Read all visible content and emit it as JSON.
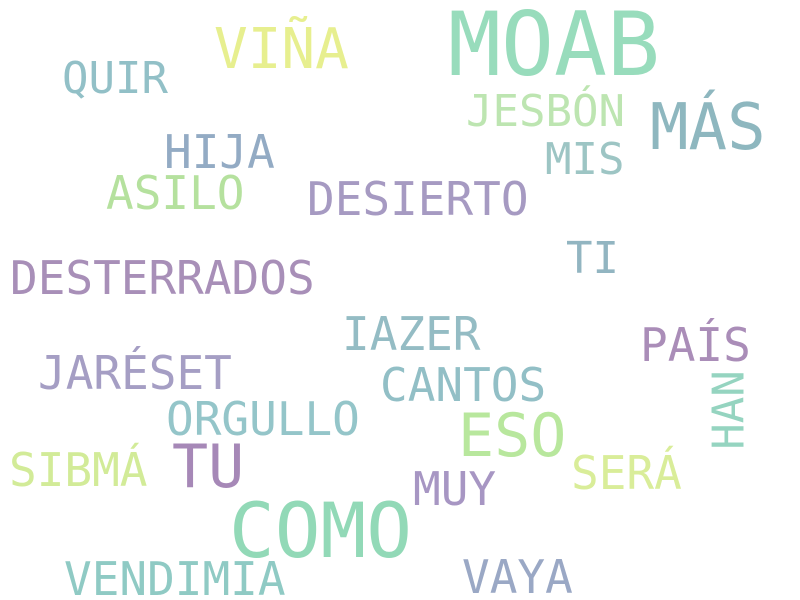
{
  "words": [
    {
      "text": "MOAB",
      "color": "#98dcbc"
    },
    {
      "text": "VIÑA",
      "color": "#e7ef8f"
    },
    {
      "text": "QUIR",
      "color": "#92c0c7"
    },
    {
      "text": "JESBÓN",
      "color": "#bde5b1"
    },
    {
      "text": "MÁS",
      "color": "#8eb7bf"
    },
    {
      "text": "HIJA",
      "color": "#93abc4"
    },
    {
      "text": "MIS",
      "color": "#9dc5c4"
    },
    {
      "text": "ASILO",
      "color": "#b5e19e"
    },
    {
      "text": "DESIERTO",
      "color": "#a69ac2"
    },
    {
      "text": "TI",
      "color": "#92b5c1"
    },
    {
      "text": "DESTERRADOS",
      "color": "#a88fb8"
    },
    {
      "text": "IAZER",
      "color": "#94bcc4"
    },
    {
      "text": "PAÍS",
      "color": "#aa8db8"
    },
    {
      "text": "JARÉSET",
      "color": "#a59ec4"
    },
    {
      "text": "CANTOS",
      "color": "#92bfc6"
    },
    {
      "text": "HAN",
      "color": "#95d4c0"
    },
    {
      "text": "ORGULLO",
      "color": "#94c5c9"
    },
    {
      "text": "ESO",
      "color": "#b8e79d"
    },
    {
      "text": "SIBMÁ",
      "color": "#d2eb98"
    },
    {
      "text": "TU",
      "color": "#a688b7"
    },
    {
      "text": "SERÁ",
      "color": "#d9ed99"
    },
    {
      "text": "MUY",
      "color": "#a796c3"
    },
    {
      "text": "COMO",
      "color": "#92d9b7"
    },
    {
      "text": "VENDIMIA",
      "color": "#8fcac4"
    },
    {
      "text": "VAYA",
      "color": "#9aa8c5"
    }
  ]
}
